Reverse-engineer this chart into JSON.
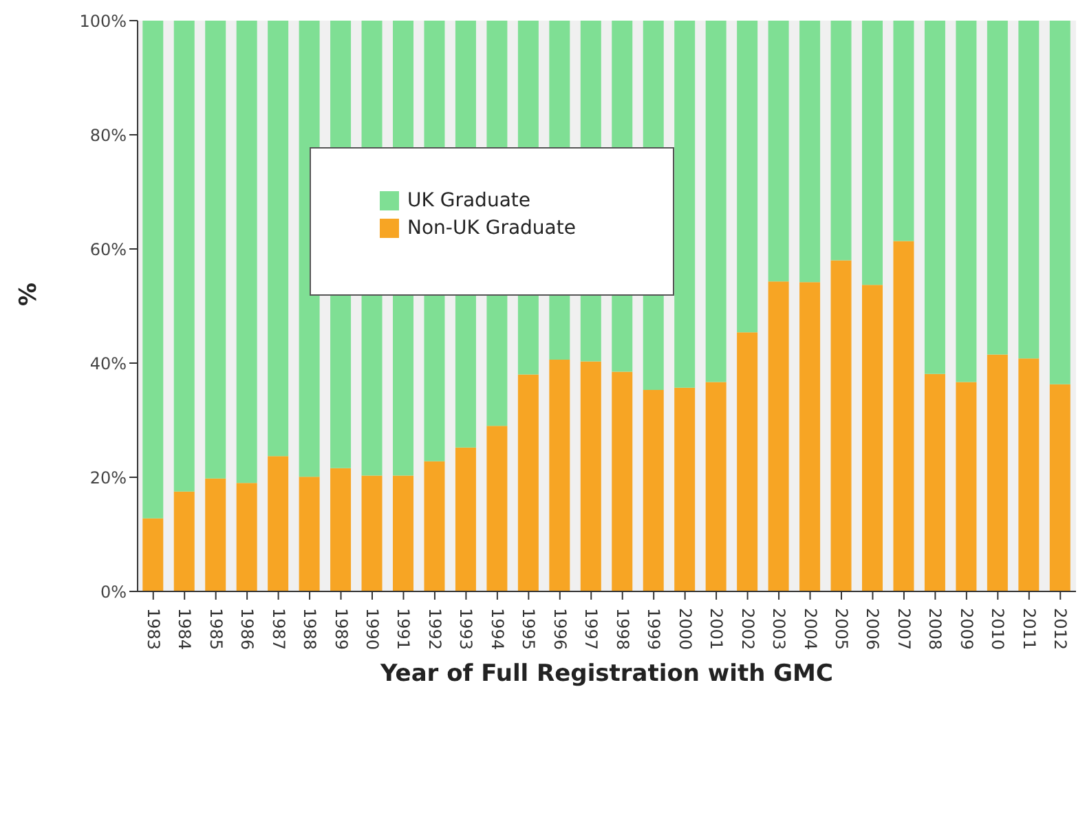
{
  "chart_data": {
    "type": "bar",
    "stacked": true,
    "xlabel": "Year of Full Registration with GMC",
    "ylabel": "%",
    "categories": [
      "1983",
      "1984",
      "1985",
      "1986",
      "1987",
      "1988",
      "1989",
      "1990",
      "1991",
      "1992",
      "1993",
      "1994",
      "1995",
      "1996",
      "1997",
      "1998",
      "1999",
      "2000",
      "2001",
      "2002",
      "2003",
      "2004",
      "2005",
      "2006",
      "2007",
      "2008",
      "2009",
      "2010",
      "2011",
      "2012"
    ],
    "series": [
      {
        "name": "Non-UK Graduate",
        "color": "#f7a524",
        "values": [
          12.8,
          17.5,
          19.8,
          19.0,
          23.7,
          20.1,
          21.6,
          20.3,
          20.3,
          22.8,
          25.2,
          29.0,
          38.0,
          40.6,
          40.3,
          38.5,
          35.3,
          35.7,
          36.7,
          45.4,
          54.3,
          54.2,
          58.0,
          53.7,
          61.4,
          38.1,
          36.7,
          41.5,
          40.8,
          36.3
        ]
      },
      {
        "name": "UK Graduate",
        "color": "#7fdf94",
        "values": [
          87.2,
          82.5,
          80.2,
          81.0,
          76.3,
          79.9,
          78.4,
          79.7,
          79.7,
          77.2,
          74.8,
          71.0,
          62.0,
          59.4,
          59.7,
          61.5,
          64.7,
          64.3,
          63.3,
          54.6,
          45.7,
          45.8,
          42.0,
          46.3,
          38.6,
          61.9,
          63.3,
          58.5,
          59.2,
          63.7
        ]
      }
    ],
    "ylim": [
      0,
      100
    ],
    "yticks": [
      {
        "value": 0,
        "label": "0%"
      },
      {
        "value": 20,
        "label": "20%"
      },
      {
        "value": 40,
        "label": "40%"
      },
      {
        "value": 60,
        "label": "60%"
      },
      {
        "value": 80,
        "label": "80%"
      },
      {
        "value": 100,
        "label": "100%"
      }
    ],
    "grid": false,
    "legend": "top left"
  }
}
